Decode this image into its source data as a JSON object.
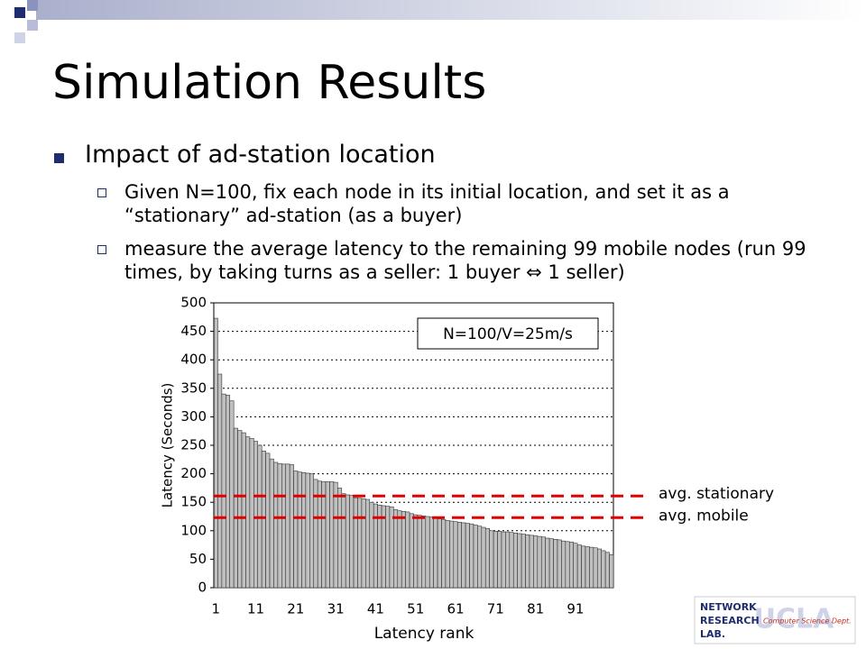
{
  "slide": {
    "title": "Simulation Results",
    "bullet": "Impact of ad-station location",
    "sub_bullets": [
      "Given N=100, fix each node in its initial location, and set it as a “stationary” ad-station (as a buyer)",
      "measure the average latency to the remaining 99 mobile nodes (run 99 times, by taking turns as a seller: 1 buyer ⇔ 1 seller)"
    ],
    "logo": {
      "lines": [
        "NETWORK",
        "RESEARCH",
        "LAB."
      ],
      "tagline": "Computer Science Dept.",
      "badge": "UCLA"
    }
  },
  "chart_data": {
    "type": "bar",
    "annotation": "N=100/V=25m/s",
    "x_label": "Latency rank",
    "y_label": "Latency (Seconds)",
    "categories": [
      "1",
      null,
      null,
      null,
      null,
      null,
      null,
      null,
      null,
      null,
      "11",
      null,
      null,
      null,
      null,
      null,
      null,
      null,
      null,
      null,
      "21",
      null,
      null,
      null,
      null,
      null,
      null,
      null,
      null,
      null,
      "31",
      null,
      null,
      null,
      null,
      null,
      null,
      null,
      null,
      null,
      "41",
      null,
      null,
      null,
      null,
      null,
      null,
      null,
      null,
      null,
      "51",
      null,
      null,
      null,
      null,
      null,
      null,
      null,
      null,
      null,
      "61",
      null,
      null,
      null,
      null,
      null,
      null,
      null,
      null,
      null,
      "71",
      null,
      null,
      null,
      null,
      null,
      null,
      null,
      null,
      null,
      "81",
      null,
      null,
      null,
      null,
      null,
      null,
      null,
      null,
      null,
      "91",
      null,
      null,
      null,
      null,
      null,
      null,
      null,
      null,
      null
    ],
    "values": [
      473,
      375,
      340,
      338,
      328,
      280,
      276,
      272,
      265,
      262,
      257,
      250,
      240,
      236,
      226,
      220,
      218,
      217,
      217,
      216,
      205,
      203,
      202,
      201,
      200,
      190,
      187,
      186,
      186,
      186,
      185,
      175,
      165,
      163,
      162,
      158,
      157,
      156,
      155,
      150,
      147,
      145,
      144,
      143,
      142,
      137,
      135,
      134,
      133,
      130,
      128,
      127,
      126,
      125,
      124,
      122,
      121,
      120,
      118,
      117,
      116,
      115,
      114,
      113,
      112,
      110,
      108,
      106,
      104,
      100,
      99,
      99,
      98,
      98,
      97,
      96,
      95,
      94,
      93,
      92,
      91,
      90,
      89,
      87,
      86,
      85,
      84,
      82,
      81,
      80,
      78,
      75,
      73,
      72,
      71,
      70,
      68,
      65,
      62,
      58
    ],
    "color": "#c0c0c0",
    "ylim": [
      0,
      500
    ],
    "yticks": [
      0,
      50,
      100,
      150,
      200,
      250,
      300,
      350,
      400,
      450,
      500
    ],
    "grid": true,
    "reference_lines": [
      {
        "value": 161,
        "label": "avg. stationary",
        "color": "#e00000"
      },
      {
        "value": 123,
        "label": "avg. mobile",
        "color": "#e00000"
      }
    ]
  }
}
